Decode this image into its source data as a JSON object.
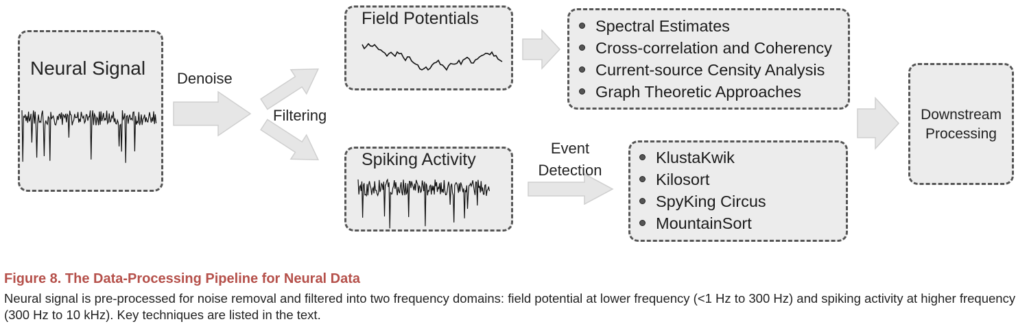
{
  "nodes": {
    "neural_signal": "Neural Signal",
    "field_potentials": "Field Potentials",
    "spiking_activity": "Spiking Activity",
    "downstream": "Downstream Processing"
  },
  "edge_labels": {
    "denoise": "Denoise",
    "filtering": "Filtering",
    "event_detection": "Event Detection"
  },
  "field_methods": [
    "Spectral Estimates",
    "Cross-correlation and Coherency",
    "Current-source Censity Analysis",
    "Graph Theoretic Approaches"
  ],
  "spike_methods": [
    "KlustaKwik",
    "Kilosort",
    "SpyKing Circus",
    "MountainSort"
  ],
  "caption": {
    "title": "Figure 8.  The Data-Processing Pipeline for Neural Data",
    "body": "Neural signal is pre-processed for noise removal and filtered into two frequency domains: field potential at lower frequency (<1 Hz to 300 Hz) and spiking activity at higher frequency (300 Hz to 10 kHz). Key techniques are listed in the text."
  },
  "colors": {
    "box_fill": "#ececec",
    "box_border": "#555555",
    "arrow_fill": "#e6e6e6",
    "arrow_stroke": "#cfcfcf",
    "caption_title": "#b5504a"
  }
}
